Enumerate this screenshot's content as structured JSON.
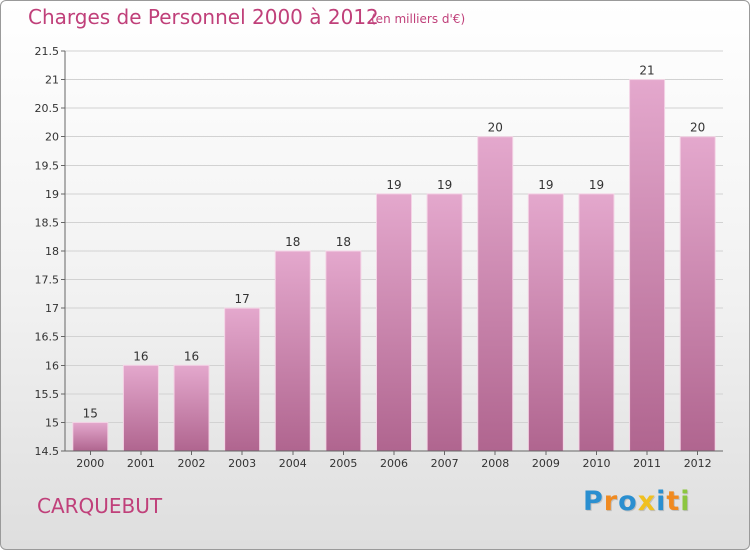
{
  "header": {
    "title": "Charges de Personnel 2000 à 2012",
    "subtitle": "(en milliers d'€)"
  },
  "footer": {
    "commune": "CARQUEBUT",
    "logo_letters": [
      "P",
      "r",
      "o",
      "x",
      "i",
      "t",
      "i"
    ]
  },
  "colors": {
    "accent": "#c0407a",
    "bar_top": "#e4a8cd",
    "bar_bottom": "#b0658f",
    "logo": [
      "#2a8fd0",
      "#f08a20",
      "#2a8fd0",
      "#f0c020",
      "#2a8fd0",
      "#f08a20",
      "#8cc63f"
    ]
  },
  "chart_data": {
    "type": "bar",
    "categories": [
      "2000",
      "2001",
      "2002",
      "2003",
      "2004",
      "2005",
      "2006",
      "2007",
      "2008",
      "2009",
      "2010",
      "2011",
      "2012"
    ],
    "values": [
      15,
      16,
      16,
      17,
      18,
      18,
      19,
      19,
      20,
      19,
      19,
      21,
      20
    ],
    "data_labels": [
      "15",
      "16",
      "16",
      "17",
      "18",
      "18",
      "19",
      "19",
      "20",
      "19",
      "19",
      "21",
      "20"
    ],
    "ylim": [
      14.5,
      21.5
    ],
    "yticks": [
      14.5,
      15,
      15.5,
      16,
      16.5,
      17,
      17.5,
      18,
      18.5,
      19,
      19.5,
      20,
      20.5,
      21,
      21.5
    ],
    "ytick_labels": [
      "14.5",
      "15",
      "15.5",
      "16",
      "16.5",
      "17",
      "17.5",
      "18",
      "18.5",
      "19",
      "19.5",
      "20",
      "20.5",
      "21",
      "21.5"
    ],
    "grid": true,
    "legend": false
  }
}
